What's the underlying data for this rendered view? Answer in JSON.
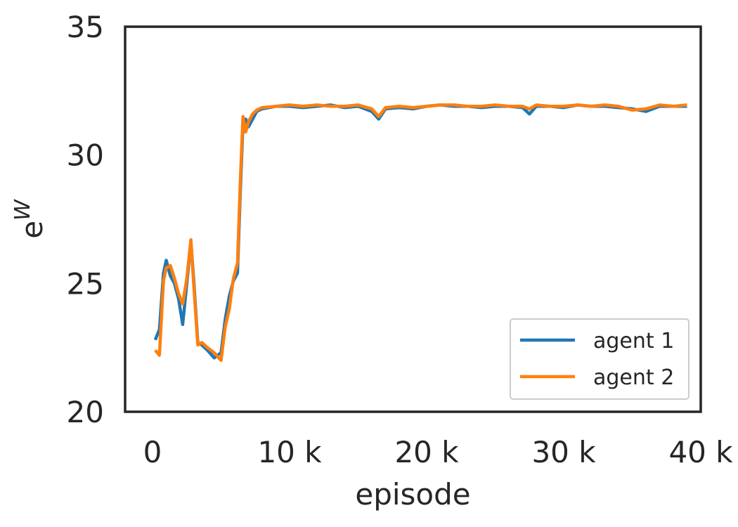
{
  "chart_data": {
    "type": "line",
    "title": "",
    "xlabel": "episode",
    "ylabel_base": "e",
    "ylabel_sup": "W",
    "xlim": [
      -2000,
      40000
    ],
    "ylim": [
      20,
      35
    ],
    "xticks": [
      0,
      10000,
      20000,
      30000,
      40000
    ],
    "xtick_labels": [
      "0",
      "10 k",
      "20 k",
      "30 k",
      "40 k"
    ],
    "yticks": [
      20,
      25,
      30,
      35
    ],
    "ytick_labels": [
      "20",
      "25",
      "30",
      "35"
    ],
    "grid": false,
    "legend_position": "lower-right",
    "series": [
      {
        "name": "agent 1",
        "color": "#1f77b4",
        "x": [
          200,
          500,
          800,
          1000,
          1300,
          1600,
          1900,
          2200,
          2500,
          2800,
          3000,
          3300,
          3600,
          4000,
          4500,
          5000,
          5300,
          5600,
          5900,
          6200,
          6400,
          6600,
          6800,
          7000,
          7300,
          7600,
          8000,
          9000,
          10000,
          11000,
          12000,
          13000,
          14000,
          15000,
          16000,
          16500,
          17000,
          18000,
          19000,
          20000,
          21000,
          22000,
          23000,
          24000,
          25000,
          26000,
          27000,
          27500,
          28000,
          29000,
          30000,
          31000,
          32000,
          33000,
          34000,
          35000,
          36000,
          37000,
          38000,
          39000
        ],
        "y": [
          22.8,
          23.2,
          25.4,
          25.9,
          25.3,
          25.0,
          24.4,
          23.4,
          25.0,
          26.6,
          25.2,
          22.7,
          22.6,
          22.4,
          22.1,
          22.3,
          23.6,
          24.5,
          25.1,
          25.4,
          28.5,
          31.2,
          31.4,
          31.1,
          31.4,
          31.7,
          31.8,
          31.9,
          31.9,
          31.85,
          31.9,
          31.95,
          31.85,
          31.9,
          31.7,
          31.4,
          31.8,
          31.85,
          31.8,
          31.9,
          31.95,
          31.9,
          31.9,
          31.85,
          31.9,
          31.9,
          31.85,
          31.6,
          31.9,
          31.9,
          31.85,
          31.95,
          31.9,
          31.9,
          31.85,
          31.8,
          31.7,
          31.9,
          31.9,
          31.9
        ]
      },
      {
        "name": "agent 2",
        "color": "#ff7f0e",
        "x": [
          200,
          500,
          800,
          1000,
          1300,
          1600,
          1900,
          2200,
          2500,
          2800,
          3000,
          3300,
          3600,
          4000,
          4500,
          5000,
          5300,
          5600,
          5900,
          6200,
          6400,
          6600,
          6800,
          7000,
          7300,
          7600,
          8000,
          9000,
          10000,
          11000,
          12000,
          13000,
          14000,
          15000,
          16000,
          16500,
          17000,
          18000,
          19000,
          20000,
          21000,
          22000,
          23000,
          24000,
          25000,
          26000,
          27000,
          27500,
          28000,
          29000,
          30000,
          31000,
          32000,
          33000,
          34000,
          35000,
          36000,
          37000,
          38000,
          39000
        ],
        "y": [
          22.4,
          22.2,
          25.1,
          25.6,
          25.7,
          25.2,
          24.6,
          24.2,
          25.2,
          26.7,
          25.0,
          22.6,
          22.7,
          22.5,
          22.3,
          22.0,
          23.3,
          24.0,
          25.2,
          25.8,
          28.9,
          31.5,
          30.9,
          31.3,
          31.6,
          31.75,
          31.85,
          31.9,
          31.95,
          31.9,
          31.95,
          31.9,
          31.9,
          31.95,
          31.8,
          31.5,
          31.85,
          31.9,
          31.85,
          31.9,
          31.95,
          31.95,
          31.9,
          31.9,
          31.95,
          31.9,
          31.9,
          31.8,
          31.95,
          31.9,
          31.9,
          31.95,
          31.9,
          31.95,
          31.9,
          31.75,
          31.8,
          31.95,
          31.9,
          31.95
        ]
      }
    ]
  }
}
